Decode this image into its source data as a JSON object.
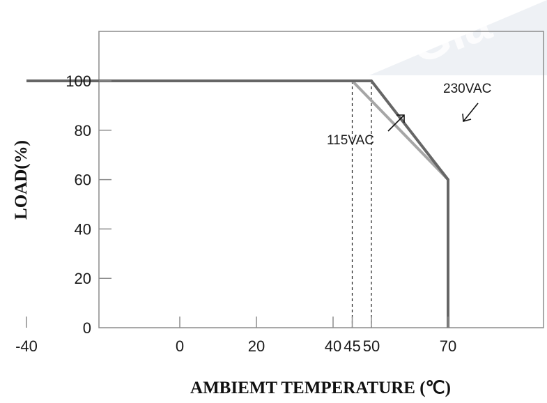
{
  "chart_data": {
    "type": "line",
    "title": "",
    "xlabel": "AMBIEMT TEMPERATURE (℃)",
    "ylabel": "LOAD(%)",
    "x_ticks": [
      -40,
      0,
      20,
      40,
      45,
      50,
      70
    ],
    "y_ticks": [
      0,
      20,
      40,
      60,
      80,
      100
    ],
    "x_tick_labels": [
      "-40",
      "0",
      "20",
      "40",
      "45",
      "50",
      "70"
    ],
    "y_tick_labels": [
      "0",
      "20",
      "40",
      "60",
      "80",
      "100"
    ],
    "xlim": [
      -40,
      80
    ],
    "ylim": [
      0,
      120
    ],
    "grid": false,
    "series": [
      {
        "name": "230VAC",
        "color": "#666666",
        "x": [
          -40,
          50,
          70,
          70
        ],
        "y": [
          100,
          100,
          60,
          0
        ]
      },
      {
        "name": "115VAC",
        "color": "#a6a6a6",
        "x": [
          -40,
          45,
          70
        ],
        "y": [
          100,
          100,
          60
        ]
      }
    ],
    "reference_lines": [
      {
        "x": 45,
        "style": "dashed"
      },
      {
        "x": 50,
        "style": "dashed"
      }
    ],
    "annotations": [
      {
        "text": "230VAC",
        "series": "230VAC"
      },
      {
        "text": "115VAC",
        "series": "115VAC"
      }
    ]
  },
  "watermark": {
    "text": "Gla",
    "color": "#eef1f5"
  }
}
